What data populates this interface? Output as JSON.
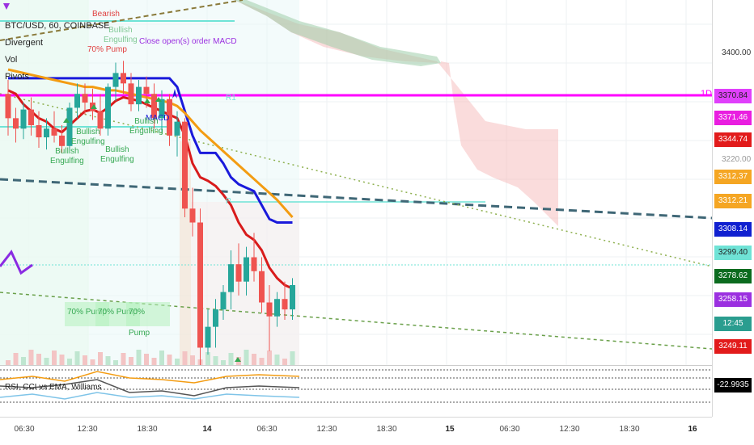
{
  "legend": {
    "symbol": "BTC/USD, 60, COINBASE",
    "lines": [
      "Divergent",
      "Vol",
      "Pivots"
    ]
  },
  "oscillator_label": "RSI, CCI vs EMA, Williams",
  "price_scale": {
    "ticks": [
      "3400.00",
      "3220.00"
    ],
    "tags": [
      {
        "text": "3370.84",
        "bg": "#e040fb",
        "fg": "#222222"
      },
      {
        "text": "3371.46",
        "bg": "#e91ee0",
        "fg": "#ffffff"
      },
      {
        "text": "3344.74",
        "bg": "#e21b1b",
        "fg": "#ffffff"
      },
      {
        "text": "3312.37",
        "bg": "#f5a623",
        "fg": "#ffffff"
      },
      {
        "text": "3312.21",
        "bg": "#f5a623",
        "fg": "#ffffff"
      },
      {
        "text": "3308.14",
        "bg": "#1020d0",
        "fg": "#ffffff"
      },
      {
        "text": "3299.40",
        "bg": "#6fe3d6",
        "fg": "#222222"
      },
      {
        "text": "3278.62",
        "bg": "#0b6b1f",
        "fg": "#ffffff"
      },
      {
        "text": "3258.15",
        "bg": "#9b30e0",
        "fg": "#ffffff"
      },
      {
        "text": "12:45",
        "bg": "#2a9d8f",
        "fg": "#ffffff"
      },
      {
        "text": "3249.11",
        "bg": "#e21b1b",
        "fg": "#ffffff"
      },
      {
        "text": "-22.9935",
        "bg": "#000000",
        "fg": "#ffffff"
      }
    ]
  },
  "pivot_label": "1D",
  "pivot_tag": "R1",
  "pivot_p": "P",
  "time_axis": {
    "labels": [
      {
        "text": "06:30",
        "bold": false
      },
      {
        "text": "12:30",
        "bold": false
      },
      {
        "text": "18:30",
        "bold": false
      },
      {
        "text": "14",
        "bold": true
      },
      {
        "text": "06:30",
        "bold": false
      },
      {
        "text": "12:30",
        "bold": false
      },
      {
        "text": "18:30",
        "bold": false
      },
      {
        "text": "15",
        "bold": true
      },
      {
        "text": "06:30",
        "bold": false
      },
      {
        "text": "12:30",
        "bold": false
      },
      {
        "text": "18:30",
        "bold": false
      },
      {
        "text": "16",
        "bold": true
      }
    ]
  },
  "annotations": {
    "bearish": "Bearish",
    "macd_note": "Close open(s) order MACD",
    "macd": "MACD",
    "pump_70_pct": "70% Pump",
    "engulfing": [
      {
        "line1": "Bullish",
        "line2": "Engulfing"
      },
      {
        "line1": "Bullish",
        "line2": "Engulfing"
      },
      {
        "line1": "Bullish",
        "line2": "Engulfing"
      },
      {
        "line1": "Bullish",
        "line2": "Engulfing"
      },
      {
        "line1": "Bullish",
        "line2": "Engulfing"
      }
    ],
    "pumps": [
      "70% Pump",
      "70% Pump",
      "70% Pump"
    ]
  },
  "chart_data": {
    "type": "candlestick",
    "symbol": "BTC/USD",
    "interval": "60",
    "exchange": "COINBASE",
    "ylim": [
      3230,
      3440
    ],
    "grid": true,
    "candles": [
      {
        "o": 3386,
        "h": 3394,
        "l": 3362,
        "c": 3372
      },
      {
        "o": 3372,
        "h": 3378,
        "l": 3358,
        "c": 3366
      },
      {
        "o": 3366,
        "h": 3381,
        "l": 3360,
        "c": 3377
      },
      {
        "o": 3377,
        "h": 3384,
        "l": 3362,
        "c": 3368
      },
      {
        "o": 3368,
        "h": 3376,
        "l": 3355,
        "c": 3361
      },
      {
        "o": 3361,
        "h": 3372,
        "l": 3354,
        "c": 3366
      },
      {
        "o": 3366,
        "h": 3376,
        "l": 3358,
        "c": 3362
      },
      {
        "o": 3362,
        "h": 3368,
        "l": 3352,
        "c": 3356
      },
      {
        "o": 3356,
        "h": 3381,
        "l": 3354,
        "c": 3378
      },
      {
        "o": 3378,
        "h": 3392,
        "l": 3372,
        "c": 3386
      },
      {
        "o": 3386,
        "h": 3392,
        "l": 3374,
        "c": 3381
      },
      {
        "o": 3381,
        "h": 3389,
        "l": 3371,
        "c": 3376
      },
      {
        "o": 3376,
        "h": 3386,
        "l": 3362,
        "c": 3366
      },
      {
        "o": 3366,
        "h": 3392,
        "l": 3362,
        "c": 3390
      },
      {
        "o": 3390,
        "h": 3404,
        "l": 3382,
        "c": 3398
      },
      {
        "o": 3398,
        "h": 3405,
        "l": 3386,
        "c": 3392
      },
      {
        "o": 3392,
        "h": 3398,
        "l": 3376,
        "c": 3380
      },
      {
        "o": 3380,
        "h": 3394,
        "l": 3376,
        "c": 3390
      },
      {
        "o": 3390,
        "h": 3396,
        "l": 3378,
        "c": 3386
      },
      {
        "o": 3386,
        "h": 3392,
        "l": 3366,
        "c": 3372
      },
      {
        "o": 3372,
        "h": 3388,
        "l": 3364,
        "c": 3383
      },
      {
        "o": 3383,
        "h": 3386,
        "l": 3356,
        "c": 3362
      },
      {
        "o": 3362,
        "h": 3376,
        "l": 3350,
        "c": 3370
      },
      {
        "o": 3370,
        "h": 3372,
        "l": 3315,
        "c": 3320
      },
      {
        "o": 3320,
        "h": 3332,
        "l": 3304,
        "c": 3312
      },
      {
        "o": 3312,
        "h": 3320,
        "l": 3228,
        "c": 3240
      },
      {
        "o": 3240,
        "h": 3262,
        "l": 3236,
        "c": 3252
      },
      {
        "o": 3252,
        "h": 3268,
        "l": 3240,
        "c": 3262
      },
      {
        "o": 3262,
        "h": 3276,
        "l": 3256,
        "c": 3272
      },
      {
        "o": 3272,
        "h": 3296,
        "l": 3262,
        "c": 3288
      },
      {
        "o": 3288,
        "h": 3300,
        "l": 3270,
        "c": 3278
      },
      {
        "o": 3278,
        "h": 3298,
        "l": 3270,
        "c": 3292
      },
      {
        "o": 3292,
        "h": 3306,
        "l": 3278,
        "c": 3284
      },
      {
        "o": 3284,
        "h": 3292,
        "l": 3260,
        "c": 3266
      },
      {
        "o": 3266,
        "h": 3276,
        "l": 3238,
        "c": 3258
      },
      {
        "o": 3258,
        "h": 3272,
        "l": 3252,
        "c": 3268
      },
      {
        "o": 3268,
        "h": 3278,
        "l": 3256,
        "c": 3262
      },
      {
        "o": 3262,
        "h": 3280,
        "l": 3256,
        "c": 3276
      }
    ],
    "overlays": [
      {
        "color": "#d81b1b",
        "values": [
          3388,
          3386,
          3380,
          3376,
          3372,
          3370,
          3366,
          3364,
          3368,
          3372,
          3376,
          3377,
          3375,
          3378,
          3382,
          3384,
          3383,
          3382,
          3380,
          3378,
          3376,
          3374,
          3372,
          3362,
          3346,
          3338,
          3336,
          3333,
          3328,
          3322,
          3312,
          3305,
          3302,
          3296,
          3286,
          3280,
          3276,
          3274
        ]
      },
      {
        "color": "#1a1adb",
        "values": [
          3395,
          3395,
          3395,
          3395,
          3395,
          3395,
          3395,
          3395,
          3395,
          3395,
          3395,
          3395,
          3395,
          3395,
          3395,
          3395,
          3395,
          3395,
          3395,
          3395,
          3395,
          3395,
          3390,
          3376,
          3362,
          3352,
          3352,
          3352,
          3346,
          3338,
          3334,
          3332,
          3330,
          3322,
          3314,
          3312,
          3312,
          3312
        ]
      },
      {
        "color": "#f39c12",
        "values": [
          3400,
          3399,
          3398,
          3397,
          3396,
          3395,
          3394,
          3393,
          3392,
          3391,
          3390,
          3390,
          3389,
          3388,
          3388,
          3387,
          3386,
          3385,
          3384,
          3383,
          3382,
          3381,
          3379,
          3375,
          3370,
          3365,
          3361,
          3357,
          3353,
          3349,
          3345,
          3341,
          3337,
          3333,
          3329,
          3325,
          3320,
          3315
        ]
      }
    ],
    "horizontal_levels": [
      {
        "value": 3370.84,
        "color": "#ff00ff"
      },
      {
        "value": 3299.4,
        "color": "#6fe3d6"
      }
    ]
  }
}
